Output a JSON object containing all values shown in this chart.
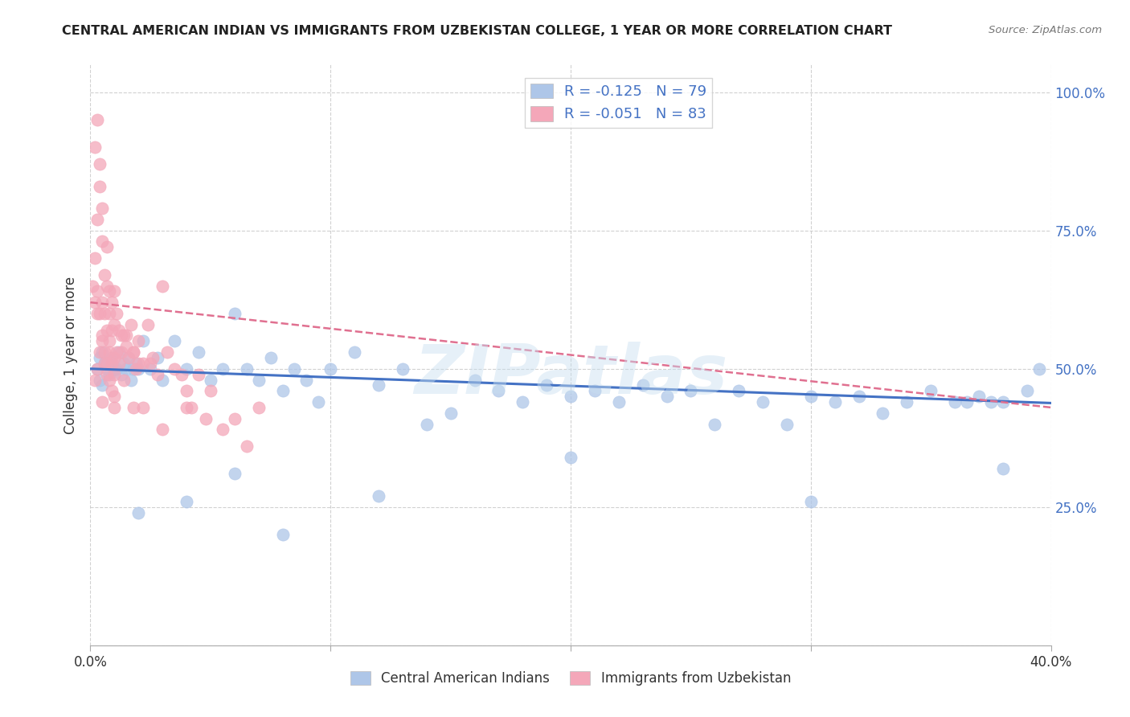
{
  "title": "CENTRAL AMERICAN INDIAN VS IMMIGRANTS FROM UZBEKISTAN COLLEGE, 1 YEAR OR MORE CORRELATION CHART",
  "source": "Source: ZipAtlas.com",
  "ylabel": "College, 1 year or more",
  "xlim": [
    0.0,
    0.4
  ],
  "ylim": [
    0.0,
    1.05
  ],
  "color_blue": "#aec6e8",
  "color_pink": "#f4a7b9",
  "line_color_blue": "#4472c4",
  "line_color_pink": "#e07090",
  "watermark": "ZIPatlas",
  "R_blue": -0.125,
  "R_pink": -0.051,
  "N_blue": 79,
  "N_pink": 83,
  "blue_trend_x": [
    0.0,
    0.4
  ],
  "blue_trend_y": [
    0.5,
    0.438
  ],
  "pink_trend_x": [
    0.0,
    0.4
  ],
  "pink_trend_y": [
    0.62,
    0.43
  ],
  "blue_x": [
    0.003,
    0.004,
    0.004,
    0.005,
    0.005,
    0.006,
    0.007,
    0.008,
    0.009,
    0.01,
    0.011,
    0.012,
    0.013,
    0.014,
    0.015,
    0.016,
    0.017,
    0.018,
    0.019,
    0.02,
    0.022,
    0.025,
    0.028,
    0.03,
    0.035,
    0.04,
    0.045,
    0.05,
    0.055,
    0.06,
    0.065,
    0.07,
    0.075,
    0.08,
    0.085,
    0.09,
    0.095,
    0.1,
    0.11,
    0.12,
    0.13,
    0.14,
    0.15,
    0.16,
    0.17,
    0.18,
    0.19,
    0.2,
    0.21,
    0.22,
    0.23,
    0.24,
    0.25,
    0.26,
    0.27,
    0.28,
    0.29,
    0.3,
    0.31,
    0.32,
    0.33,
    0.34,
    0.35,
    0.36,
    0.365,
    0.37,
    0.375,
    0.38,
    0.39,
    0.395,
    0.02,
    0.04,
    0.06,
    0.08,
    0.12,
    0.2,
    0.3,
    0.38,
    0.01
  ],
  "blue_y": [
    0.5,
    0.52,
    0.48,
    0.53,
    0.47,
    0.51,
    0.5,
    0.49,
    0.52,
    0.5,
    0.5,
    0.53,
    0.49,
    0.51,
    0.5,
    0.52,
    0.48,
    0.5,
    0.51,
    0.5,
    0.55,
    0.5,
    0.52,
    0.48,
    0.55,
    0.5,
    0.53,
    0.48,
    0.5,
    0.6,
    0.5,
    0.48,
    0.52,
    0.46,
    0.5,
    0.48,
    0.44,
    0.5,
    0.53,
    0.47,
    0.5,
    0.4,
    0.42,
    0.48,
    0.46,
    0.44,
    0.47,
    0.45,
    0.46,
    0.44,
    0.47,
    0.45,
    0.46,
    0.4,
    0.46,
    0.44,
    0.4,
    0.45,
    0.44,
    0.45,
    0.42,
    0.44,
    0.46,
    0.44,
    0.44,
    0.45,
    0.44,
    0.44,
    0.46,
    0.5,
    0.24,
    0.26,
    0.31,
    0.2,
    0.27,
    0.34,
    0.26,
    0.32,
    0.5
  ],
  "pink_x": [
    0.001,
    0.002,
    0.002,
    0.003,
    0.003,
    0.003,
    0.004,
    0.004,
    0.005,
    0.005,
    0.005,
    0.006,
    0.006,
    0.007,
    0.007,
    0.007,
    0.008,
    0.008,
    0.008,
    0.009,
    0.009,
    0.01,
    0.01,
    0.01,
    0.011,
    0.012,
    0.013,
    0.014,
    0.015,
    0.016,
    0.017,
    0.018,
    0.019,
    0.02,
    0.022,
    0.024,
    0.026,
    0.028,
    0.03,
    0.032,
    0.035,
    0.038,
    0.04,
    0.042,
    0.045,
    0.048,
    0.05,
    0.055,
    0.06,
    0.065,
    0.07,
    0.003,
    0.004,
    0.005,
    0.006,
    0.007,
    0.008,
    0.009,
    0.01,
    0.011,
    0.012,
    0.013,
    0.015,
    0.018,
    0.02,
    0.025,
    0.002,
    0.003,
    0.004,
    0.005,
    0.006,
    0.007,
    0.008,
    0.009,
    0.01,
    0.014,
    0.018,
    0.022,
    0.03,
    0.04,
    0.002,
    0.005,
    0.01
  ],
  "pink_y": [
    0.65,
    0.7,
    0.9,
    0.95,
    0.77,
    0.6,
    0.83,
    0.87,
    0.79,
    0.73,
    0.62,
    0.67,
    0.6,
    0.72,
    0.65,
    0.57,
    0.64,
    0.6,
    0.55,
    0.62,
    0.57,
    0.64,
    0.58,
    0.52,
    0.6,
    0.57,
    0.53,
    0.56,
    0.54,
    0.52,
    0.58,
    0.53,
    0.5,
    0.55,
    0.51,
    0.58,
    0.52,
    0.49,
    0.65,
    0.53,
    0.5,
    0.49,
    0.46,
    0.43,
    0.49,
    0.41,
    0.46,
    0.39,
    0.41,
    0.36,
    0.43,
    0.5,
    0.53,
    0.55,
    0.51,
    0.49,
    0.53,
    0.51,
    0.49,
    0.53,
    0.51,
    0.56,
    0.56,
    0.53,
    0.51,
    0.51,
    0.62,
    0.64,
    0.6,
    0.56,
    0.53,
    0.51,
    0.48,
    0.46,
    0.43,
    0.48,
    0.43,
    0.43,
    0.39,
    0.43,
    0.48,
    0.44,
    0.45
  ]
}
